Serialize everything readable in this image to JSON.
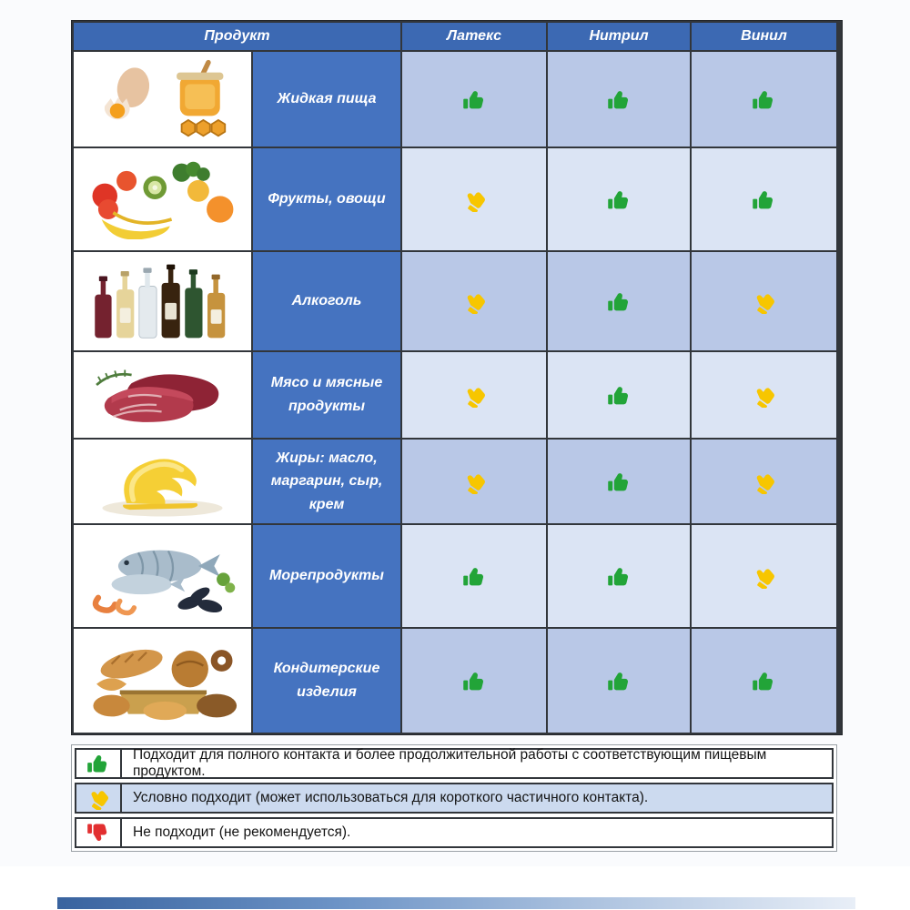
{
  "colors": {
    "header_blue": "#3c69b3",
    "name_cell_blue": "#4573c0",
    "row_shade_medium": "#b9c8e7",
    "row_shade_light": "#dbe4f4",
    "legend_row_blue": "#ccdaef",
    "grid_line": "#32363b",
    "green": "#22a438",
    "yellow": "#f7c600",
    "red": "#e22f30"
  },
  "table": {
    "headers": {
      "product": "Продукт",
      "materials": [
        "Латекс",
        "Нитрил",
        "Винил"
      ]
    },
    "rows": [
      {
        "name": "Жидкая пища",
        "image": "eggs-honey-photo",
        "ratings": [
          "suitable",
          "suitable",
          "suitable"
        ]
      },
      {
        "name": "Фрукты, овощи",
        "image": "fruits-vegetables-photo",
        "ratings": [
          "conditional",
          "suitable",
          "suitable"
        ]
      },
      {
        "name": "Алкоголь",
        "image": "alcohol-bottles-photo",
        "ratings": [
          "conditional",
          "suitable",
          "conditional"
        ]
      },
      {
        "name": "Мясо и мясные продукты",
        "image": "meat-photo",
        "ratings": [
          "conditional",
          "suitable",
          "conditional"
        ]
      },
      {
        "name": "Жиры: масло, маргарин, сыр, крем",
        "image": "butter-photo",
        "ratings": [
          "conditional",
          "suitable",
          "conditional"
        ]
      },
      {
        "name": "Морепродукты",
        "image": "seafood-photo",
        "ratings": [
          "suitable",
          "suitable",
          "conditional"
        ]
      },
      {
        "name": "Кондитерские изделия",
        "image": "bakery-photo",
        "ratings": [
          "suitable",
          "suitable",
          "suitable"
        ]
      }
    ]
  },
  "legend": [
    {
      "icon": "thumb-up-green-icon",
      "rating": "suitable",
      "text": "Подходит для полного контакта и более продолжительной работы с соответствующим пищевым продуктом."
    },
    {
      "icon": "thumb-tilted-yellow-icon",
      "rating": "conditional",
      "text": "Условно подходит (может использоваться для короткого частичного контакта)."
    },
    {
      "icon": "thumb-down-red-icon",
      "rating": "not-suitable",
      "text": "Не подходит (не рекомендуется)."
    }
  ],
  "chart_data": {
    "type": "table",
    "title": "",
    "columns": [
      "Продукт",
      "Латекс",
      "Нитрил",
      "Винил"
    ],
    "rows": [
      [
        "Жидкая пища",
        "suitable",
        "suitable",
        "suitable"
      ],
      [
        "Фрукты, овощи",
        "conditional",
        "suitable",
        "suitable"
      ],
      [
        "Алкоголь",
        "conditional",
        "suitable",
        "conditional"
      ],
      [
        "Мясо и мясные продукты",
        "conditional",
        "suitable",
        "conditional"
      ],
      [
        "Жиры: масло, маргарин, сыр, крем",
        "conditional",
        "suitable",
        "conditional"
      ],
      [
        "Морепродукты",
        "suitable",
        "suitable",
        "conditional"
      ],
      [
        "Кондитерские изделия",
        "suitable",
        "suitable",
        "suitable"
      ]
    ],
    "legend_meaning": {
      "suitable": "Подходит для полного контакта и более продолжительной работы с соответствующим пищевым продуктом.",
      "conditional": "Условно подходит (может использоваться для короткого частичного контакта).",
      "not-suitable": "Не подходит (не рекомендуется)."
    }
  }
}
